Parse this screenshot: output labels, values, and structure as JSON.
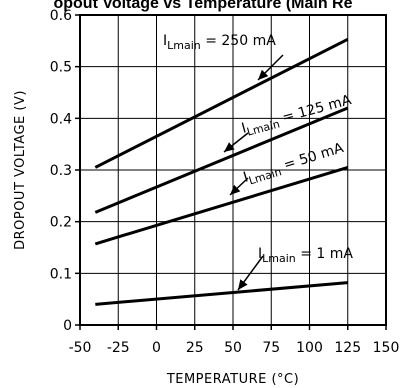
{
  "chart_data": {
    "type": "line",
    "title": "opout Voltage vs Temperature (Main Re",
    "xlabel": "TEMPERATURE (°C)",
    "ylabel": "DROPOUT VOLTAGE (V)",
    "xlim": [
      -50,
      150
    ],
    "ylim": [
      0,
      0.6
    ],
    "x_ticks": [
      "-50",
      "-25",
      "0",
      "25",
      "50",
      "75",
      "100",
      "125",
      "150"
    ],
    "y_ticks": [
      "0",
      "0.1",
      "0.2",
      "0.3",
      "0.4",
      "0.5",
      "0.6"
    ],
    "grid": true,
    "series": [
      {
        "name_main": "I",
        "name_sub": "Lmain",
        "name_rest": " = 250 mA",
        "x": [
          -40,
          125
        ],
        "y": [
          0.305,
          0.553
        ]
      },
      {
        "name_main": "I",
        "name_sub": "Lmain",
        "name_rest": " = 125 mA",
        "x": [
          -40,
          125
        ],
        "y": [
          0.218,
          0.42
        ]
      },
      {
        "name_main": "I",
        "name_sub": "Lmain",
        "name_rest": " = 50 mA",
        "x": [
          -40,
          125
        ],
        "y": [
          0.157,
          0.305
        ]
      },
      {
        "name_main": "I",
        "name_sub": "Lmain",
        "name_rest": " = 1 mA",
        "x": [
          -40,
          125
        ],
        "y": [
          0.04,
          0.082
        ]
      }
    ]
  }
}
